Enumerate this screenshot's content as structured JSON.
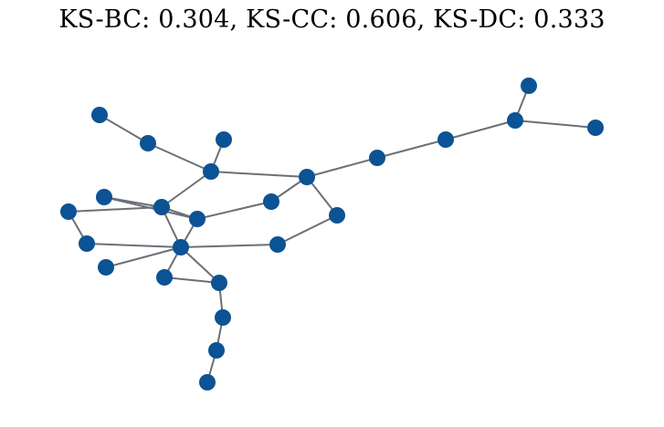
{
  "title": "KS-BC: 0.304, KS-CC: 0.606, KS-DC: 0.333",
  "graph": {
    "node_color": "#0b5394",
    "edge_color": "#6b6f78",
    "node_count": 26,
    "edges": [
      [
        0,
        1
      ],
      [
        1,
        2
      ],
      [
        2,
        3
      ],
      [
        1,
        4
      ],
      [
        4,
        5
      ],
      [
        5,
        6
      ],
      [
        5,
        7
      ],
      [
        7,
        8
      ],
      [
        8,
        9
      ],
      [
        9,
        10
      ],
      [
        9,
        11
      ],
      [
        11,
        12
      ],
      [
        10,
        13
      ],
      [
        13,
        14
      ],
      [
        14,
        15
      ],
      [
        13,
        16
      ],
      [
        16,
        17
      ],
      [
        13,
        18
      ],
      [
        16,
        18
      ],
      [
        18,
        19
      ],
      [
        19,
        20
      ],
      [
        20,
        21
      ],
      [
        18,
        22
      ],
      [
        18,
        23
      ],
      [
        23,
        24
      ],
      [
        24,
        25
      ]
    ]
  }
}
